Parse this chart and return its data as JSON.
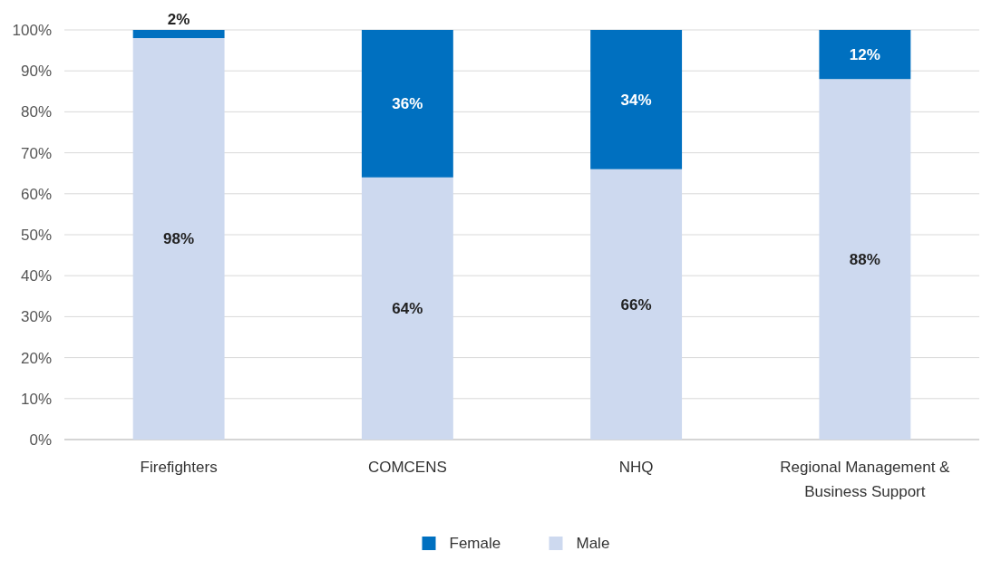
{
  "chart_data": {
    "type": "bar",
    "stacked": true,
    "categories": [
      "Firefighters",
      "COMCENS",
      "NHQ",
      "Regional Management & Business Support"
    ],
    "series": [
      {
        "name": "Male",
        "color": "#cdd9ef",
        "values": [
          98,
          64,
          66,
          88
        ],
        "value_labels": [
          "98%",
          "64%",
          "66%",
          "88%"
        ]
      },
      {
        "name": "Female",
        "color": "#0070c0",
        "values": [
          2,
          36,
          34,
          12
        ],
        "value_labels": [
          "2%",
          "36%",
          "34%",
          "12%"
        ]
      }
    ],
    "ylim": [
      0,
      100
    ],
    "yticks": [
      {
        "value": 0,
        "label": "0%"
      },
      {
        "value": 10,
        "label": "10%"
      },
      {
        "value": 20,
        "label": "20%"
      },
      {
        "value": 30,
        "label": "30%"
      },
      {
        "value": 40,
        "label": "40%"
      },
      {
        "value": 50,
        "label": "50%"
      },
      {
        "value": 60,
        "label": "60%"
      },
      {
        "value": 70,
        "label": "70%"
      },
      {
        "value": 80,
        "label": "80%"
      },
      {
        "value": 90,
        "label": "90%"
      },
      {
        "value": 100,
        "label": "100%"
      }
    ],
    "grid": "y",
    "legend": "bottom"
  }
}
